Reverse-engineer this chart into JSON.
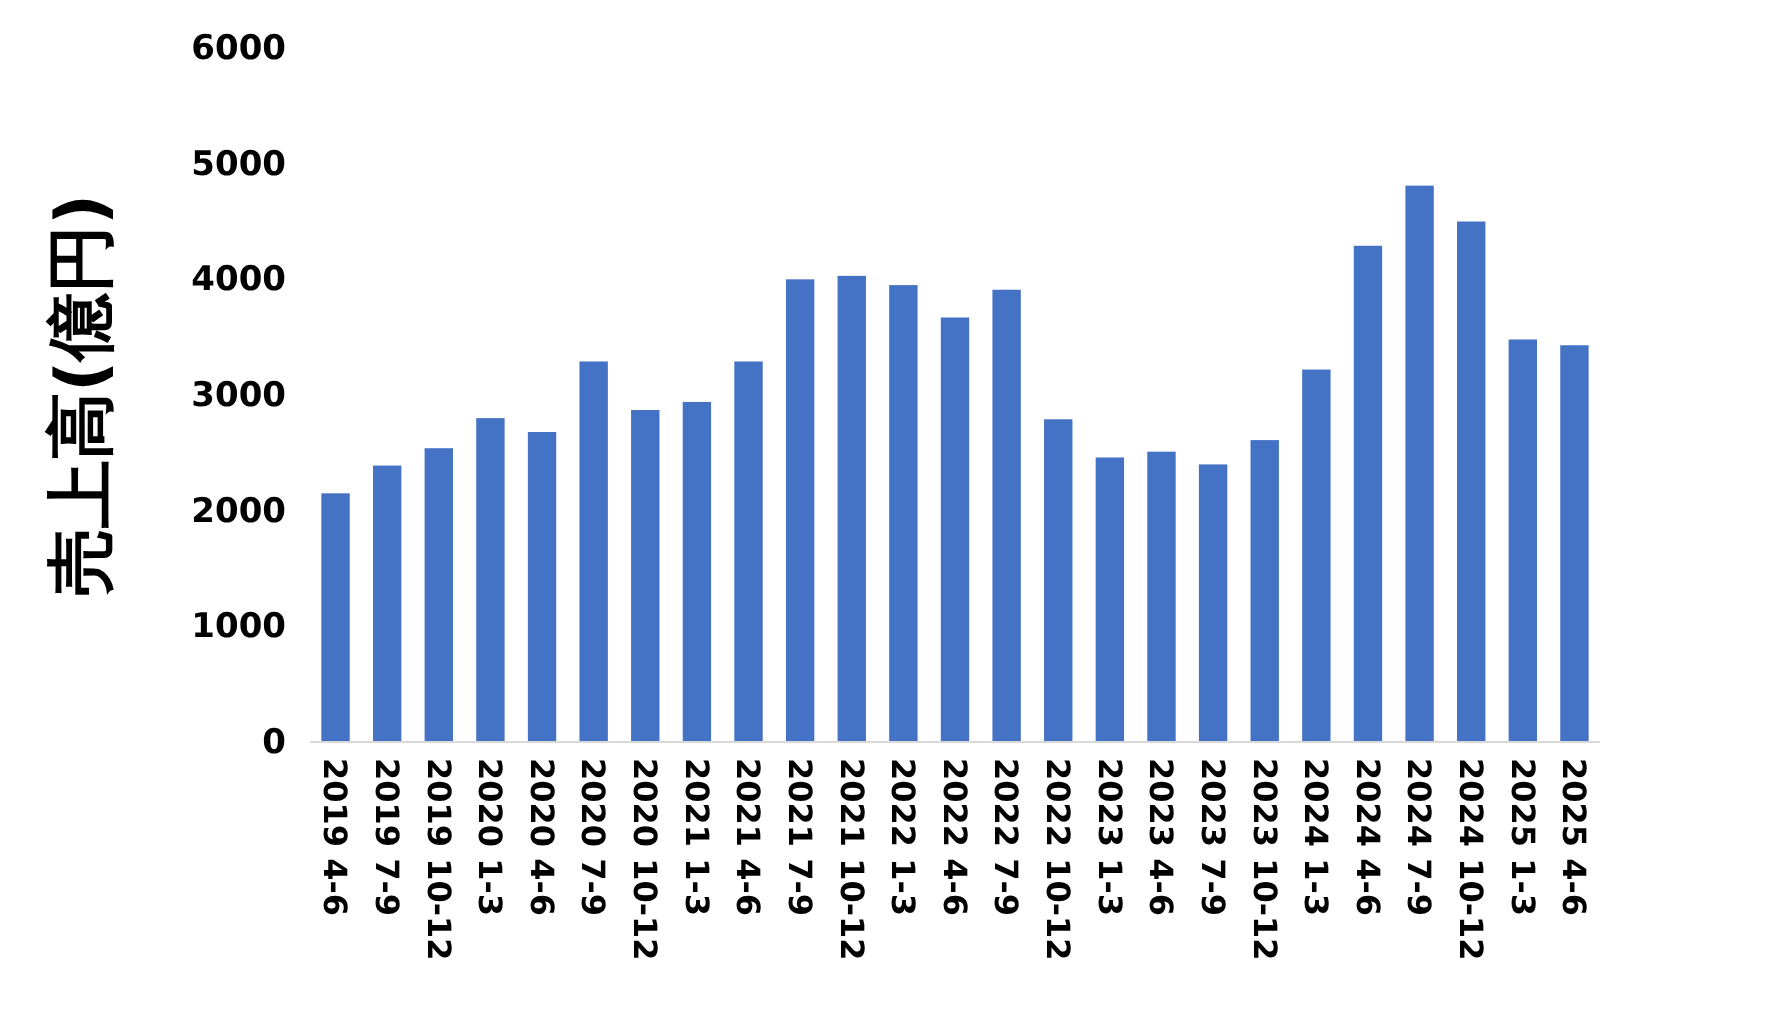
{
  "chart_data": {
    "type": "bar",
    "ylabel": "売上高(億円)",
    "categories": [
      "2019 4-6",
      "2019 7-9",
      "2019 10-12",
      "2020 1-3",
      "2020 4-6",
      "2020 7-9",
      "2020 10-12",
      "2021 1-3",
      "2021 4-6",
      "2021 7-9",
      "2021 10-12",
      "2022 1-3",
      "2022 4-6",
      "2022 7-9",
      "2022 10-12",
      "2023 1-3",
      "2023 4-6",
      "2023 7-9",
      "2023 10-12",
      "2024 1-3",
      "2024 4-6",
      "2024 7-9",
      "2024 10-12",
      "2025 1-3",
      "2025 4-6"
    ],
    "values": [
      2150,
      2390,
      2540,
      2800,
      2680,
      3290,
      2870,
      2940,
      3290,
      4000,
      4030,
      3950,
      3670,
      3910,
      2790,
      2460,
      2510,
      2400,
      2610,
      3220,
      4290,
      4810,
      4500,
      3480,
      3430
    ],
    "color": "#4472c4",
    "ylim": [
      0,
      6000
    ],
    "yticks": [
      0,
      1000,
      2000,
      3000,
      4000,
      5000,
      6000
    ]
  }
}
